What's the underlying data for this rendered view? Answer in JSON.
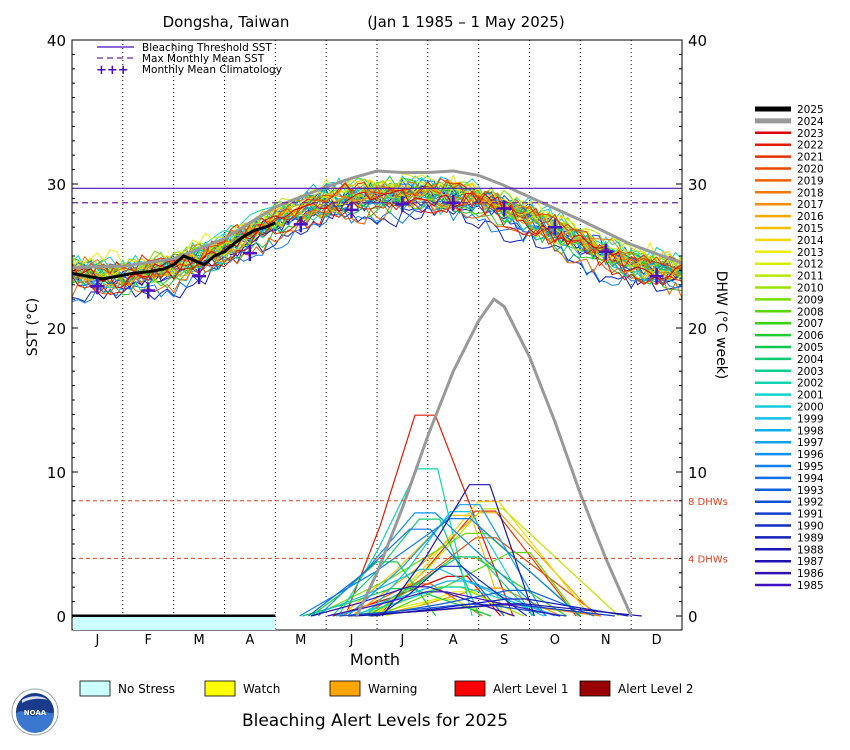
{
  "chart_data": {
    "type": "line",
    "title": "Dongsha, Taiwan",
    "date_range": "(Jan 1 1985 – 1 May 2025)",
    "xlabel": "Month",
    "ylabel_left": "SST (°C)",
    "ylabel_right": "DHW (°C week)",
    "ylim": [
      0,
      40
    ],
    "left_ticks": [
      "0",
      "10",
      "20",
      "30",
      "40"
    ],
    "right_ticks": [
      "0",
      "10",
      "20",
      "30",
      "40"
    ],
    "months": [
      "J",
      "F",
      "M",
      "A",
      "M",
      "J",
      "J",
      "A",
      "S",
      "O",
      "N",
      "D"
    ],
    "grid": "dotted vertical lines at month boundaries",
    "legend_position": "top-left inside plot; year legend to the right of plot",
    "key": {
      "threshold": "Bleaching Threshold SST",
      "mmm": "Max Monthly Mean SST",
      "climatology": "Monthly Mean Climatology"
    },
    "bleaching_threshold": 29.7,
    "max_monthly_mean": 28.7,
    "dhw_reference_lines": [
      {
        "value": 8,
        "label": "8 DHWs"
      },
      {
        "value": 4,
        "label": "4 DHWs"
      }
    ],
    "climatology": [
      {
        "month": 0.5,
        "sst": 22.9
      },
      {
        "month": 1.5,
        "sst": 22.6
      },
      {
        "month": 2.5,
        "sst": 23.6
      },
      {
        "month": 3.5,
        "sst": 25.2
      },
      {
        "month": 4.5,
        "sst": 27.2
      },
      {
        "month": 5.5,
        "sst": 28.2
      },
      {
        "month": 6.5,
        "sst": 28.6
      },
      {
        "month": 7.5,
        "sst": 28.7
      },
      {
        "month": 8.5,
        "sst": 28.3
      },
      {
        "month": 9.5,
        "sst": 27.0
      },
      {
        "month": 10.5,
        "sst": 25.3
      },
      {
        "month": 11.5,
        "sst": 23.6
      }
    ],
    "sst_2025": [
      [
        0.0,
        23.8
      ],
      [
        0.3,
        23.6
      ],
      [
        0.6,
        23.4
      ],
      [
        0.9,
        23.6
      ],
      [
        1.2,
        23.8
      ],
      [
        1.5,
        23.9
      ],
      [
        1.8,
        24.1
      ],
      [
        2.0,
        24.4
      ],
      [
        2.2,
        25.0
      ],
      [
        2.4,
        24.7
      ],
      [
        2.6,
        24.4
      ],
      [
        2.8,
        25.0
      ],
      [
        3.0,
        25.3
      ],
      [
        3.2,
        25.9
      ],
      [
        3.4,
        26.4
      ],
      [
        3.6,
        26.8
      ],
      [
        3.8,
        27.0
      ],
      [
        4.0,
        27.3
      ]
    ],
    "sst_2024": [
      [
        0.0,
        24.2
      ],
      [
        1.0,
        24.3
      ],
      [
        2.0,
        24.8
      ],
      [
        3.0,
        26.2
      ],
      [
        4.0,
        28.4
      ],
      [
        5.0,
        29.8
      ],
      [
        5.5,
        30.4
      ],
      [
        6.0,
        30.9
      ],
      [
        6.5,
        30.8
      ],
      [
        7.0,
        30.8
      ],
      [
        7.5,
        30.9
      ],
      [
        8.0,
        30.6
      ],
      [
        8.5,
        29.9
      ],
      [
        9.0,
        29.1
      ],
      [
        10.0,
        27.5
      ],
      [
        11.0,
        25.8
      ],
      [
        12.0,
        24.5
      ]
    ],
    "dhw_2024": [
      [
        5.6,
        0.0
      ],
      [
        6.0,
        3.0
      ],
      [
        6.5,
        7.5
      ],
      [
        7.0,
        12.5
      ],
      [
        7.5,
        17.0
      ],
      [
        8.0,
        20.5
      ],
      [
        8.3,
        22.0
      ],
      [
        8.5,
        21.5
      ],
      [
        9.0,
        18.0
      ],
      [
        9.5,
        13.5
      ],
      [
        10.0,
        8.5
      ],
      [
        10.5,
        4.0
      ],
      [
        11.0,
        0.0
      ]
    ],
    "dhw_2025": [
      [
        0.0,
        0.0
      ],
      [
        4.0,
        0.0
      ]
    ],
    "alert_strip_2025": {
      "status": "No Stress",
      "through_month": 4.0
    },
    "years": [
      "2025",
      "2024",
      "2023",
      "2022",
      "2021",
      "2020",
      "2019",
      "2018",
      "2017",
      "2016",
      "2015",
      "2014",
      "2013",
      "2012",
      "2011",
      "2010",
      "2009",
      "2008",
      "2007",
      "2006",
      "2005",
      "2004",
      "2003",
      "2002",
      "2001",
      "2000",
      "1999",
      "1998",
      "1997",
      "1996",
      "1995",
      "1994",
      "1993",
      "1992",
      "1991",
      "1990",
      "1989",
      "1988",
      "1987",
      "1986",
      "1985"
    ],
    "year_colors": [
      "#000000",
      "#999999",
      "#dd0000",
      "#e21a00",
      "#e63000",
      "#eb4800",
      "#ee6000",
      "#f07800",
      "#f29000",
      "#f4a800",
      "#f6c000",
      "#f4d800",
      "#eeee00",
      "#d8ee00",
      "#b8ea00",
      "#98e400",
      "#78de00",
      "#58d800",
      "#38d210",
      "#20cc30",
      "#10c850",
      "#10cc70",
      "#10d090",
      "#10d4b0",
      "#10d4cc",
      "#10ccdd",
      "#10c0e8",
      "#10b0f0",
      "#10a0f4",
      "#1090f0",
      "#1080ec",
      "#1070e4",
      "#1060dc",
      "#1050d4",
      "#1040cc",
      "#1030c4",
      "#1020bc",
      "#1818b4",
      "#2010b0",
      "#3010b0",
      "#4010c0"
    ],
    "alert_levels": [
      {
        "label": "No Stress",
        "color": "#ccffff"
      },
      {
        "label": "Watch",
        "color": "#ffff00"
      },
      {
        "label": "Warning",
        "color": "#ffa500"
      },
      {
        "label": "Alert Level 1",
        "color": "#ff0000"
      },
      {
        "label": "Alert Level 2",
        "color": "#990000"
      }
    ],
    "alert_title": "Bleaching Alert Levels for 2025",
    "logo_text": "NOAA"
  }
}
